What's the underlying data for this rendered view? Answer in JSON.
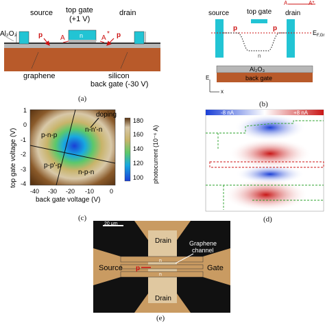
{
  "a": {
    "label": "(a)",
    "source": "source",
    "top_gate": "top gate",
    "top_gate_v": "(+1 V)",
    "drain": "drain",
    "al2o3": "Al₂O₃",
    "p_left": "p",
    "a_left": "A",
    "n": "n",
    "a_right": "A",
    "a_star": "*",
    "p_right": "p",
    "graphene": "graphene",
    "silicon": "silicon",
    "back_gate": "back gate (-30 V)"
  },
  "b": {
    "label": "(b)",
    "legend_a1": "A",
    "legend_a2": "A*",
    "source": "source",
    "top_gate": "top gate",
    "drain": "drain",
    "p_left": "p",
    "p_right": "p",
    "n": "n",
    "ef": "E",
    "ef_sub": "F,Gr",
    "al2o3": "Al₂O₃",
    "back_gate": "back gate",
    "axis_e": "E",
    "axis_x": "x"
  },
  "c": {
    "label": "(c)",
    "doping": "doping",
    "region_pnp": "p-n-p",
    "region_nnn": "n-n'-n",
    "region_ppp": "p-p'-p",
    "region_npn": "n-p-n",
    "xlabel": "back gate voltage (V)",
    "ylabel": "top gate voltage (V)",
    "cbar_label": "photocurrent (10⁻⁶ A)",
    "xticks": [
      "-40",
      "-30",
      "-20",
      "-10",
      "0"
    ],
    "yticks": [
      "1",
      "0",
      "-1",
      "-2",
      "-3",
      "-4"
    ],
    "cticks": [
      "180",
      "160",
      "140",
      "120",
      "100"
    ]
  },
  "d": {
    "label": "(d)",
    "cbar_min": "-8 nA",
    "cbar_max": "+8 nA"
  },
  "e": {
    "label": "(e)",
    "scale": "20 μm",
    "drain_top": "Drain",
    "drain_bottom": "Drain",
    "source": "Source",
    "gate": "Gate",
    "channel_1": "Graphene",
    "channel_2": "channel",
    "p": "p",
    "n": "n"
  },
  "colors": {
    "source_drain": "#22c4d4",
    "substrate": "#b85a2a",
    "oxide": "#b7b7b7",
    "arrow": "#cc1111",
    "gold": "#c99b62"
  }
}
